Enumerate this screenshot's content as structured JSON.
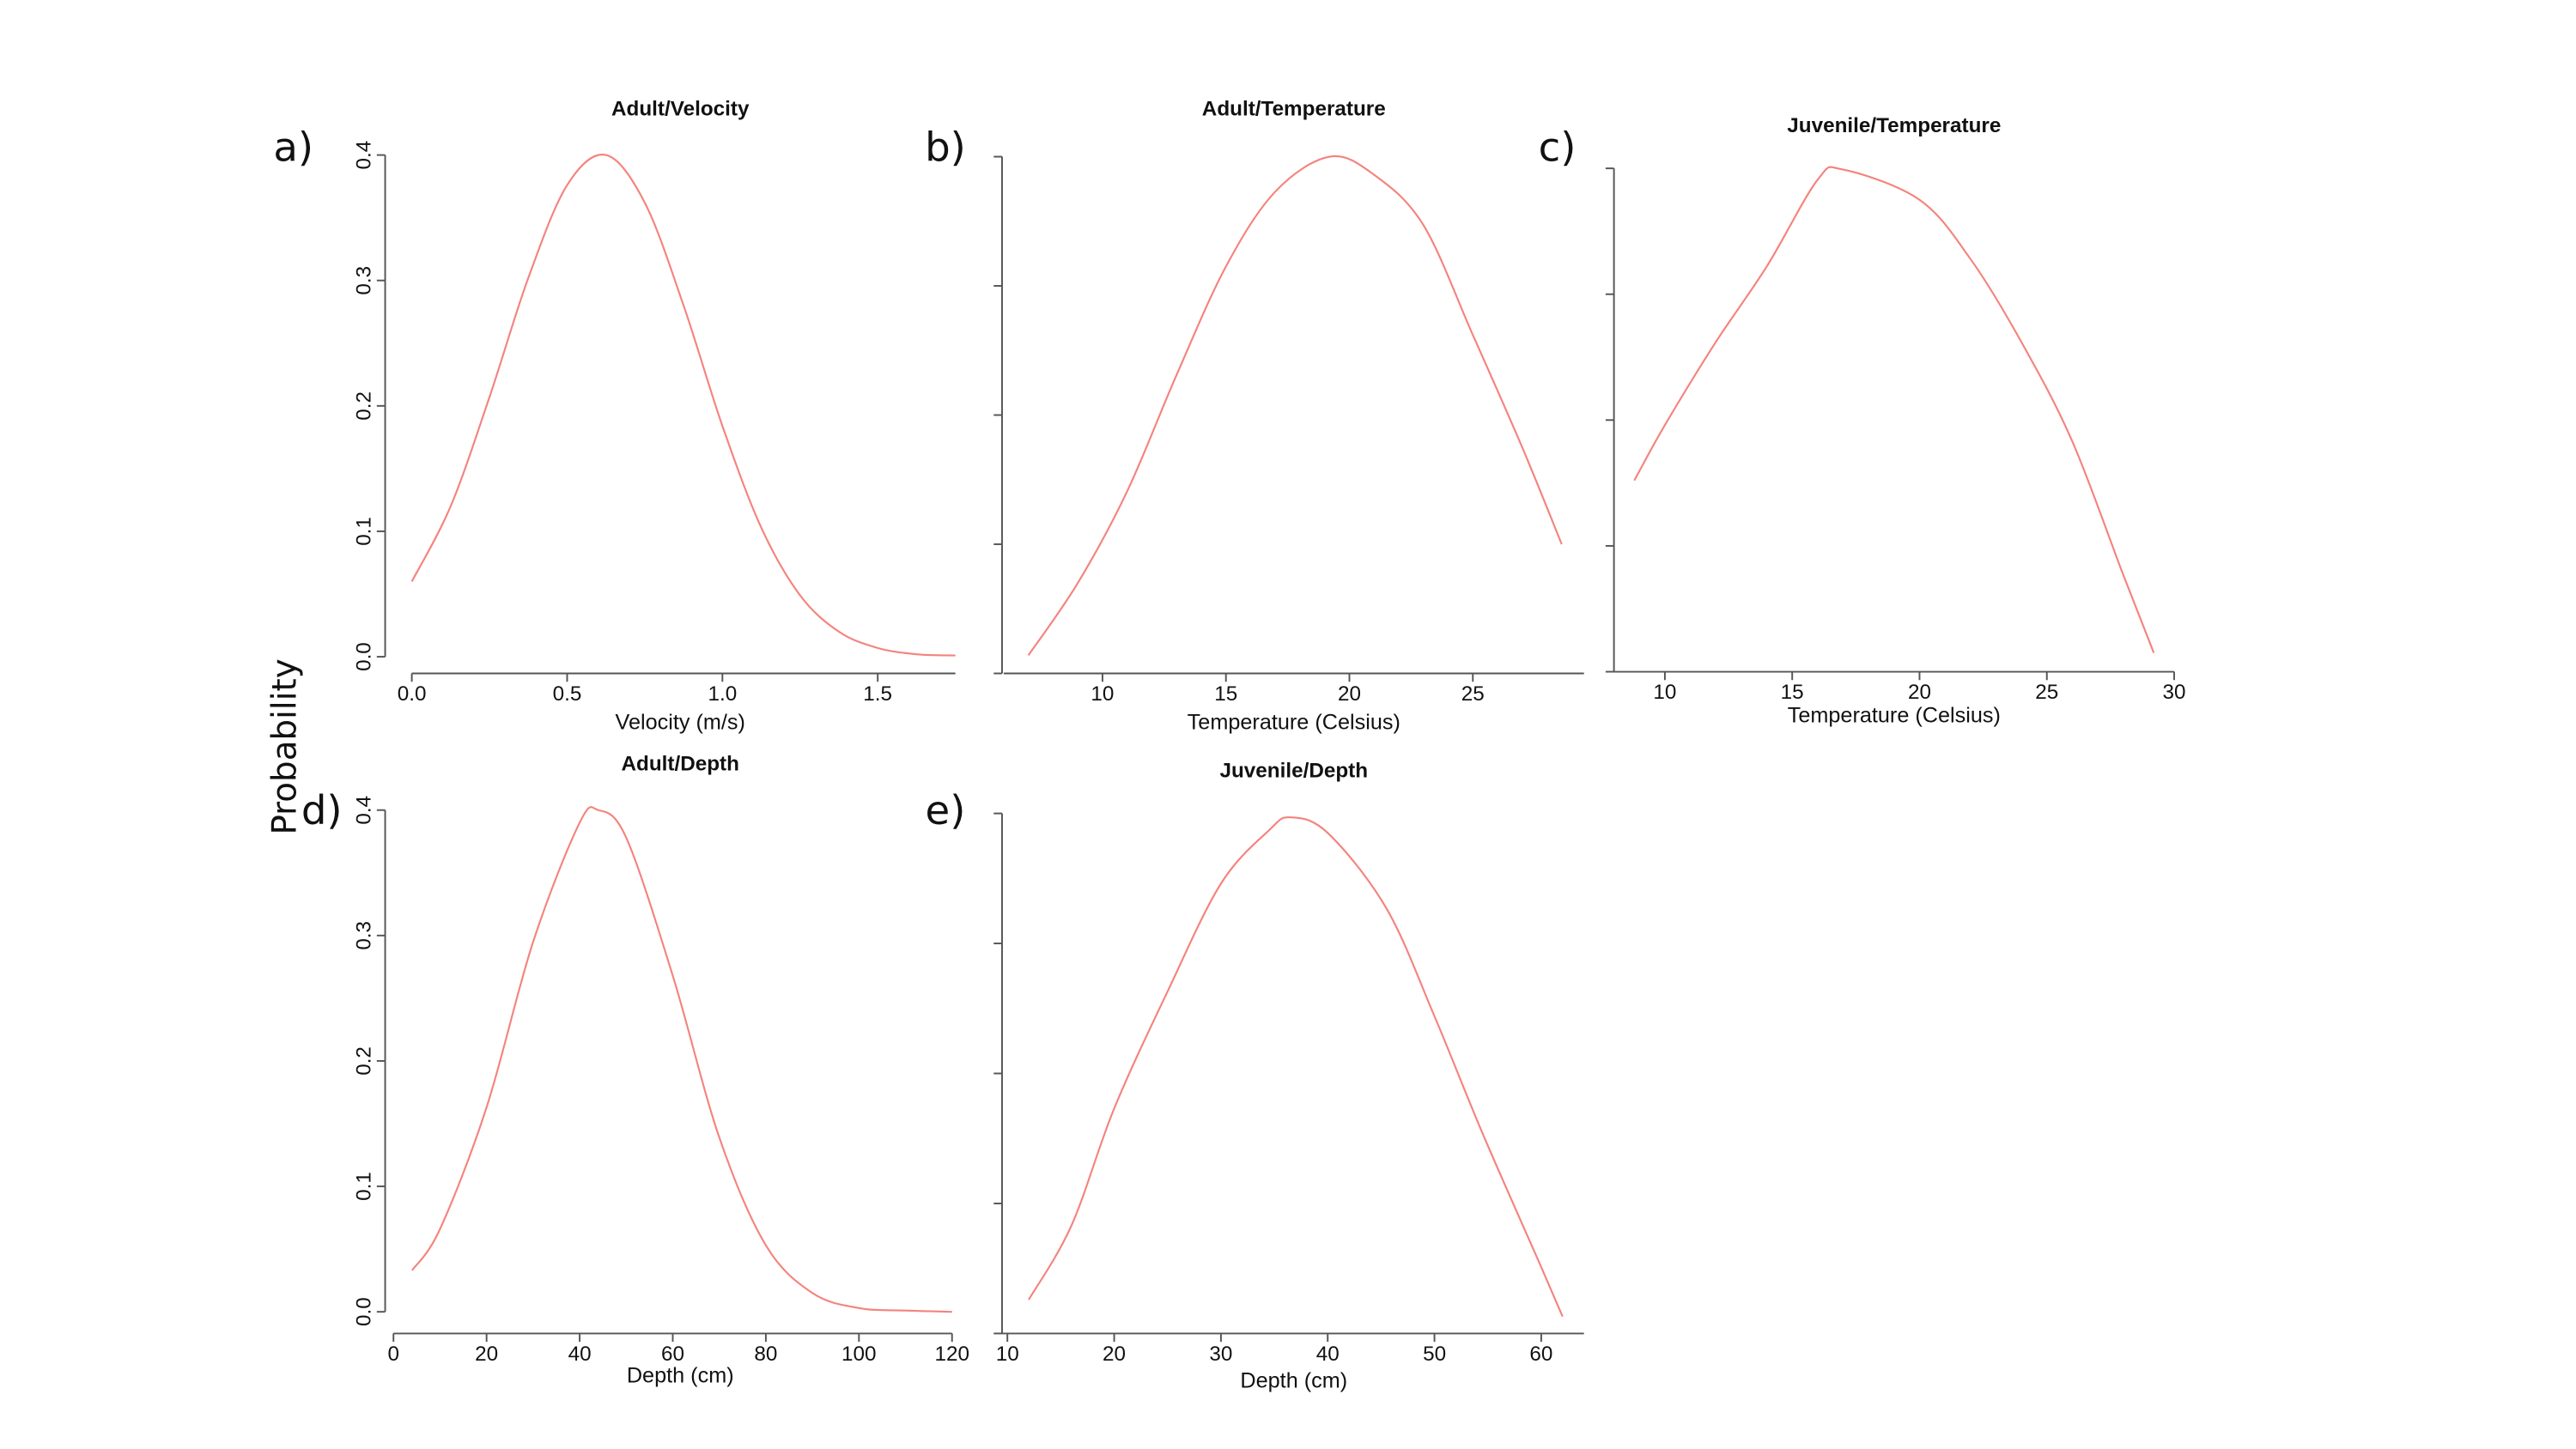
{
  "ylabel": "Probability",
  "chart_data": [
    {
      "type": "line",
      "label": "a)",
      "title": "Adult/Velocity",
      "xlabel": "Velocity (m/s)",
      "x": [
        0,
        0.125,
        0.25,
        0.375,
        0.5,
        0.625,
        0.75,
        0.875,
        1.0,
        1.125,
        1.25,
        1.375,
        1.5,
        1.625,
        1.75
      ],
      "values": [
        0.06,
        0.12,
        0.207,
        0.302,
        0.376,
        0.4,
        0.362,
        0.28,
        0.184,
        0.103,
        0.049,
        0.02,
        0.007,
        0.002,
        0.001
      ],
      "color": "#f4837d",
      "xlim": [
        0,
        1.75
      ],
      "ylim": [
        0,
        0.4
      ],
      "xticks": [
        {
          "value": 0,
          "label": "0.0"
        },
        0.5,
        {
          "value": 1,
          "label": "1.0"
        },
        1.5
      ],
      "yticks": [
        {
          "value": 0,
          "label": "0.0"
        },
        0.1,
        0.2,
        0.3,
        0.4
      ],
      "ytick_labels": true
    },
    {
      "type": "line",
      "label": "b)",
      "title": "Adult/Temperature",
      "xlabel": "Temperature (Celsius)",
      "x": [
        7,
        9,
        11,
        13,
        15,
        17,
        19.2,
        21,
        23,
        25,
        27,
        28.6
      ],
      "values": [
        0.014,
        0.07,
        0.141,
        0.231,
        0.315,
        0.373,
        0.4,
        0.386,
        0.347,
        0.262,
        0.175,
        0.1
      ],
      "color": "#f4837d",
      "xlim": [
        6,
        29.5
      ],
      "ylim": [
        0,
        0.4
      ],
      "xticks": [
        10,
        15,
        20,
        25
      ],
      "yticks": [
        0,
        0.1,
        0.2,
        0.3,
        0.4
      ],
      "ytick_labels": false
    },
    {
      "type": "line",
      "label": "c)",
      "title": "Juvenile/Temperature",
      "xlabel": "Temperature (Celsius)",
      "x": [
        8.8,
        10,
        12,
        14,
        16,
        17,
        20,
        22,
        24,
        26,
        28,
        29.2
      ],
      "values": [
        0.152,
        0.196,
        0.262,
        0.322,
        0.391,
        0.399,
        0.375,
        0.328,
        0.262,
        0.183,
        0.077,
        0.015
      ],
      "color": "#f4837d",
      "xlim": [
        8,
        30
      ],
      "ylim": [
        0,
        0.4
      ],
      "xticks": [
        10,
        15,
        20,
        25,
        30
      ],
      "yticks": [
        0,
        0.1,
        0.2,
        0.3,
        0.4
      ],
      "ytick_labels": false
    },
    {
      "type": "line",
      "label": "d)",
      "title": "Adult/Depth",
      "xlabel": "Depth (cm)",
      "x": [
        4,
        10,
        20,
        30,
        40,
        44,
        50,
        60,
        70,
        80,
        90,
        100,
        110,
        120
      ],
      "values": [
        0.033,
        0.066,
        0.163,
        0.295,
        0.39,
        0.4,
        0.378,
        0.268,
        0.139,
        0.053,
        0.015,
        0.003,
        0.001,
        0
      ],
      "color": "#f4837d",
      "xlim": [
        0,
        120
      ],
      "ylim": [
        0,
        0.4
      ],
      "xticks": [
        0,
        20,
        40,
        60,
        80,
        100,
        120
      ],
      "yticks": [
        {
          "value": 0,
          "label": "0.0"
        },
        0.1,
        0.2,
        0.3,
        0.4
      ],
      "ytick_labels": true
    },
    {
      "type": "line",
      "label": "e)",
      "title": "Juvenile/Depth",
      "xlabel": "Depth (cm)",
      "x": [
        12,
        16,
        20,
        25,
        30,
        34.5,
        36.5,
        40,
        45.5,
        50,
        54.5,
        60,
        62
      ],
      "values": [
        0.026,
        0.083,
        0.173,
        0.263,
        0.346,
        0.387,
        0.397,
        0.385,
        0.327,
        0.244,
        0.154,
        0.051,
        0.013
      ],
      "color": "#f4837d",
      "xlim": [
        9.5,
        64
      ],
      "ylim": [
        0,
        0.4
      ],
      "xticks": [
        10,
        20,
        30,
        40,
        50,
        60
      ],
      "yticks": [
        0,
        0.1,
        0.2,
        0.3,
        0.4
      ],
      "ytick_labels": false
    }
  ]
}
